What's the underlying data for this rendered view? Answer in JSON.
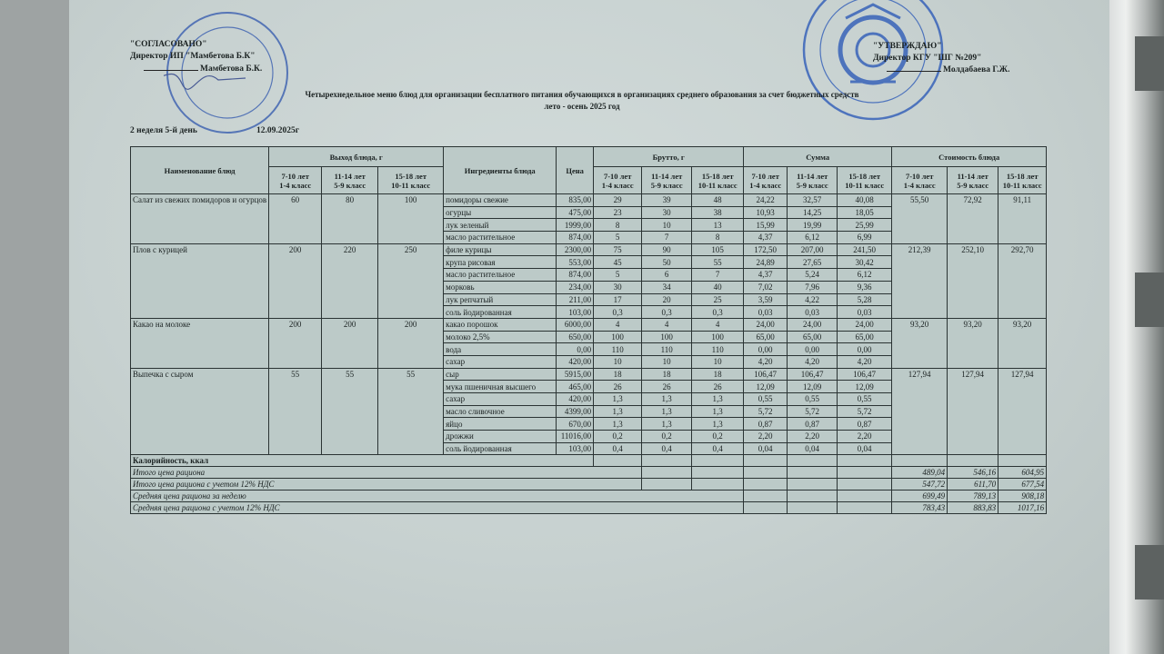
{
  "header": {
    "left": {
      "line1": "\"СОГЛАСОВАНО\"",
      "line2": "Директор ИП \"Мамбетова Б.К\"",
      "signer": "Мамбетова Б.К."
    },
    "right": {
      "line1": "\"УТВЕРЖДАЮ\"",
      "line2": "Директор КГУ \"ШГ №209\"",
      "signer": "Молдабаева Г.Ж."
    },
    "title": "Четырехнедельное меню блюд для организации бесплатного питания обучающихся в организациях среднего образования за счет бюджетных средств",
    "season": "лето - осень 2025 год",
    "day": "2 неделя 5-й день",
    "date": "12.09.2025г"
  },
  "stamps": {
    "left": {
      "color": "#3a5fb0",
      "lines": [
        "Мамбетова",
        "Бака",
        "Кабржановна",
        "РНН 600311..."
      ]
    },
    "right": {
      "color": "#2f5cb8"
    }
  },
  "table": {
    "headers": {
      "dish": "Наименование блюд",
      "yield": "Выход блюда, г",
      "ingredients": "Ингредиенты блюда",
      "price": "Цена",
      "brutto": "Брутто, г",
      "sum": "Сумма",
      "cost": "Стоимость блюда",
      "groups": [
        {
          "age": "7-10 лет",
          "grade": "1-4 класс"
        },
        {
          "age": "11-14 лет",
          "grade": "5-9 класс"
        },
        {
          "age": "15-18 лет",
          "grade": "10-11 класс"
        }
      ]
    },
    "dishes": [
      {
        "name": "Салат из свежих помидоров и огурцов",
        "yield": [
          "60",
          "80",
          "100"
        ],
        "cost": [
          "55,50",
          "72,92",
          "91,11"
        ],
        "ingredients": [
          {
            "name": "помидоры свежие",
            "price": "835,00",
            "brutto": [
              "29",
              "39",
              "48"
            ],
            "sum": [
              "24,22",
              "32,57",
              "40,08"
            ]
          },
          {
            "name": "огурцы",
            "price": "475,00",
            "brutto": [
              "23",
              "30",
              "38"
            ],
            "sum": [
              "10,93",
              "14,25",
              "18,05"
            ]
          },
          {
            "name": "лук зеленый",
            "price": "1999,00",
            "brutto": [
              "8",
              "10",
              "13"
            ],
            "sum": [
              "15,99",
              "19,99",
              "25,99"
            ]
          },
          {
            "name": "масло растительное",
            "price": "874,00",
            "brutto": [
              "5",
              "7",
              "8"
            ],
            "sum": [
              "4,37",
              "6,12",
              "6,99"
            ]
          }
        ]
      },
      {
        "name": "Плов с курицей",
        "yield": [
          "200",
          "220",
          "250"
        ],
        "cost": [
          "212,39",
          "252,10",
          "292,70"
        ],
        "ingredients": [
          {
            "name": "филе курицы",
            "price": "2300,00",
            "brutto": [
              "75",
              "90",
              "105"
            ],
            "sum": [
              "172,50",
              "207,00",
              "241,50"
            ]
          },
          {
            "name": "крупа рисовая",
            "price": "553,00",
            "brutto": [
              "45",
              "50",
              "55"
            ],
            "sum": [
              "24,89",
              "27,65",
              "30,42"
            ]
          },
          {
            "name": "масло растительное",
            "price": "874,00",
            "brutto": [
              "5",
              "6",
              "7"
            ],
            "sum": [
              "4,37",
              "5,24",
              "6,12"
            ]
          },
          {
            "name": "морковь",
            "price": "234,00",
            "brutto": [
              "30",
              "34",
              "40"
            ],
            "sum": [
              "7,02",
              "7,96",
              "9,36"
            ]
          },
          {
            "name": "лук репчатый",
            "price": "211,00",
            "brutto": [
              "17",
              "20",
              "25"
            ],
            "sum": [
              "3,59",
              "4,22",
              "5,28"
            ]
          },
          {
            "name": "соль йодированная",
            "price": "103,00",
            "brutto": [
              "0,3",
              "0,3",
              "0,3"
            ],
            "sum": [
              "0,03",
              "0,03",
              "0,03"
            ]
          }
        ]
      },
      {
        "name": "Какао на молоке",
        "yield": [
          "200",
          "200",
          "200"
        ],
        "cost": [
          "93,20",
          "93,20",
          "93,20"
        ],
        "ingredients": [
          {
            "name": "какао порошок",
            "price": "6000,00",
            "brutto": [
              "4",
              "4",
              "4"
            ],
            "sum": [
              "24,00",
              "24,00",
              "24,00"
            ]
          },
          {
            "name": "молоко 2,5%",
            "price": "650,00",
            "brutto": [
              "100",
              "100",
              "100"
            ],
            "sum": [
              "65,00",
              "65,00",
              "65,00"
            ]
          },
          {
            "name": "вода",
            "price": "0,00",
            "brutto": [
              "110",
              "110",
              "110"
            ],
            "sum": [
              "0,00",
              "0,00",
              "0,00"
            ]
          },
          {
            "name": "сахар",
            "price": "420,00",
            "brutto": [
              "10",
              "10",
              "10"
            ],
            "sum": [
              "4,20",
              "4,20",
              "4,20"
            ]
          }
        ]
      },
      {
        "name": "Выпечка с сыром",
        "yield": [
          "55",
          "55",
          "55"
        ],
        "cost": [
          "127,94",
          "127,94",
          "127,94"
        ],
        "ingredients": [
          {
            "name": "сыр",
            "price": "5915,00",
            "brutto": [
              "18",
              "18",
              "18"
            ],
            "sum": [
              "106,47",
              "106,47",
              "106,47"
            ]
          },
          {
            "name": "мука пшеничная высшего",
            "price": "465,00",
            "brutto": [
              "26",
              "26",
              "26"
            ],
            "sum": [
              "12,09",
              "12,09",
              "12,09"
            ]
          },
          {
            "name": "сахар",
            "price": "420,00",
            "brutto": [
              "1,3",
              "1,3",
              "1,3"
            ],
            "sum": [
              "0,55",
              "0,55",
              "0,55"
            ]
          },
          {
            "name": "масло сливочное",
            "price": "4399,00",
            "brutto": [
              "1,3",
              "1,3",
              "1,3"
            ],
            "sum": [
              "5,72",
              "5,72",
              "5,72"
            ]
          },
          {
            "name": "яйцо",
            "price": "670,00",
            "brutto": [
              "1,3",
              "1,3",
              "1,3"
            ],
            "sum": [
              "0,87",
              "0,87",
              "0,87"
            ]
          },
          {
            "name": "дрожжи",
            "price": "11016,00",
            "brutto": [
              "0,2",
              "0,2",
              "0,2"
            ],
            "sum": [
              "2,20",
              "2,20",
              "2,20"
            ]
          },
          {
            "name": "соль йодированная",
            "price": "103,00",
            "brutto": [
              "0,4",
              "0,4",
              "0,4"
            ],
            "sum": [
              "0,04",
              "0,04",
              "0,04"
            ]
          }
        ]
      }
    ],
    "calories_label": "Калорийность, ккал",
    "totals": [
      {
        "label": "Итого цена рациона",
        "values": [
          "489,04",
          "546,16",
          "604,95"
        ]
      },
      {
        "label": "Итого цена рациона с учетом 12% НДС",
        "values": [
          "547,72",
          "611,70",
          "677,54"
        ]
      },
      {
        "label": "Средняя цена рациона за неделю",
        "values": [
          "699,49",
          "789,13",
          "908,18"
        ]
      },
      {
        "label": "Средняя цена рациона с учетом 12% НДС",
        "values": [
          "783,43",
          "883,83",
          "1017,16"
        ]
      }
    ]
  }
}
